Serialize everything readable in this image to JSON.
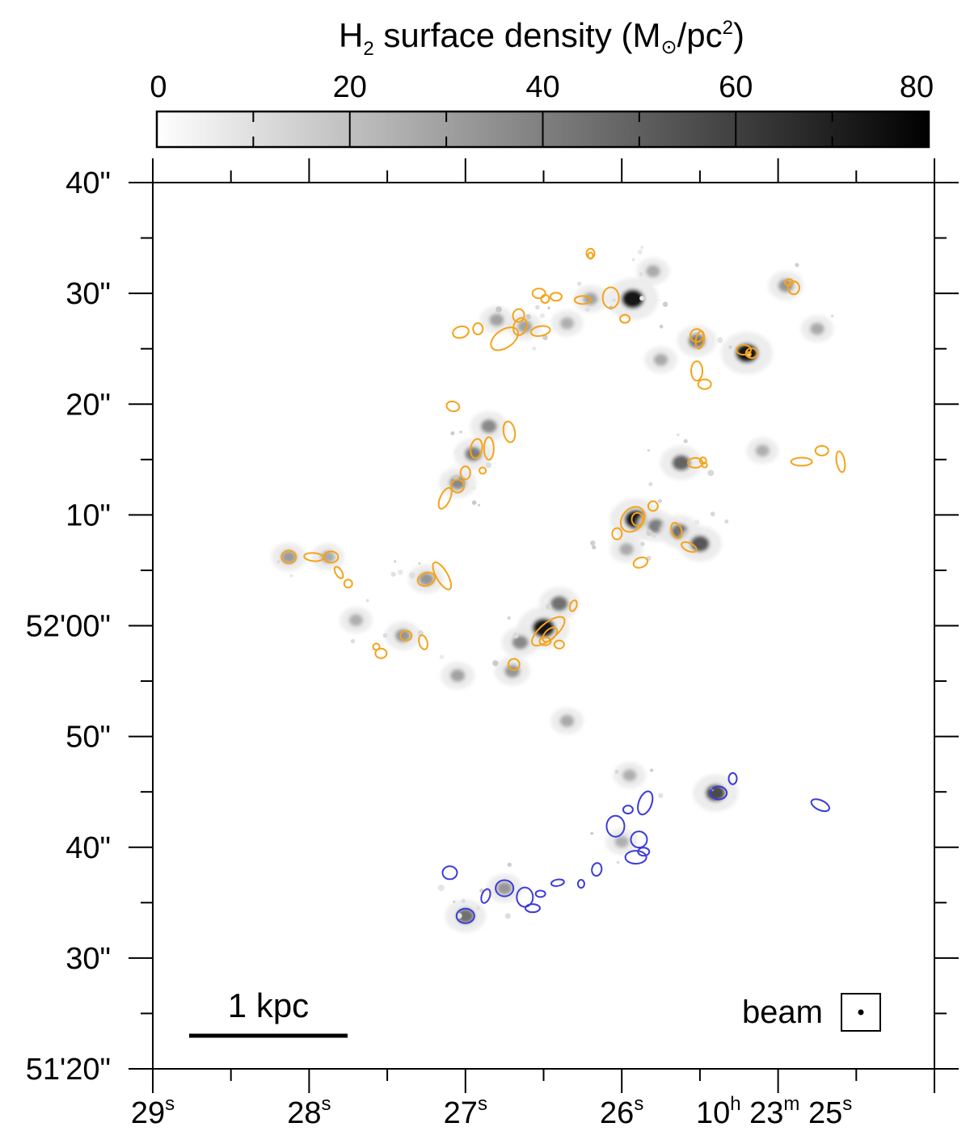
{
  "chart_data": {
    "type": "heatmap",
    "colorbar": {
      "title_main": "H",
      "title_sub": "2",
      "title_mid": " surface density (M",
      "title_sun": "⊙",
      "title_unit": "/pc",
      "title_sup": "2",
      "title_end": ")",
      "ticks": [
        "0",
        "20",
        "40",
        "60",
        "80"
      ],
      "range": [
        0,
        80
      ],
      "cmap": [
        "#ffffff",
        "#000000"
      ]
    },
    "y_axis": {
      "range_arcsec": [
        20,
        100
      ],
      "major_ticks": [
        {
          "v": 100,
          "label": "40\""
        },
        {
          "v": 90,
          "label": "30\""
        },
        {
          "v": 80,
          "label": "20\""
        },
        {
          "v": 70,
          "label": "10\""
        },
        {
          "v": 60,
          "label": "52'00\""
        },
        {
          "v": 50,
          "label": "50\""
        },
        {
          "v": 40,
          "label": "40\""
        },
        {
          "v": 30,
          "label": "30\""
        },
        {
          "v": 20,
          "label": "51'20\""
        }
      ]
    },
    "x_axis": {
      "range_s": [
        29,
        24
      ],
      "major_ticks": [
        {
          "v": 29,
          "base": "29",
          "sup": "s"
        },
        {
          "v": 28,
          "base": "28",
          "sup": "s"
        },
        {
          "v": 27,
          "base": "27",
          "sup": "s"
        },
        {
          "v": 26,
          "base": "26",
          "sup": "s"
        },
        {
          "v": 25,
          "parts": [
            "10",
            "h",
            " 23",
            "m",
            " 25",
            "s"
          ]
        }
      ]
    },
    "scale_bar": {
      "label": "1 kpc"
    },
    "beam": {
      "label": "beam"
    },
    "contour_colors": {
      "orange": "#f5a31a",
      "blue": "#3b3bdc"
    },
    "clumps": [
      {
        "ra": 28.13,
        "dec": 66.2,
        "peak": 28
      },
      {
        "ra": 27.88,
        "dec": 66.2,
        "peak": 22
      },
      {
        "ra": 27.4,
        "dec": 59.1,
        "peak": 30
      },
      {
        "ra": 27.25,
        "dec": 64.2,
        "peak": 30
      },
      {
        "ra": 27.05,
        "dec": 72.9,
        "peak": 35
      },
      {
        "ra": 26.95,
        "dec": 75.5,
        "peak": 40
      },
      {
        "ra": 26.85,
        "dec": 78.0,
        "peak": 35
      },
      {
        "ra": 26.8,
        "dec": 87.6,
        "peak": 25
      },
      {
        "ra": 26.62,
        "dec": 87.0,
        "peak": 25
      },
      {
        "ra": 26.35,
        "dec": 87.3,
        "peak": 20
      },
      {
        "ra": 26.2,
        "dec": 89.5,
        "peak": 25
      },
      {
        "ra": 25.93,
        "dec": 89.5,
        "peak": 80
      },
      {
        "ra": 25.75,
        "dec": 84.0,
        "peak": 22
      },
      {
        "ra": 25.8,
        "dec": 92.0,
        "peak": 22
      },
      {
        "ra": 25.91,
        "dec": 69.6,
        "peak": 80
      },
      {
        "ra": 25.78,
        "dec": 69.0,
        "peak": 40
      },
      {
        "ra": 25.63,
        "dec": 68.5,
        "peak": 45
      },
      {
        "ra": 25.5,
        "dec": 67.4,
        "peak": 55
      },
      {
        "ra": 25.62,
        "dec": 74.7,
        "peak": 50
      },
      {
        "ra": 25.97,
        "dec": 66.9,
        "peak": 22
      },
      {
        "ra": 26.5,
        "dec": 59.8,
        "peak": 80
      },
      {
        "ra": 26.4,
        "dec": 62.0,
        "peak": 45
      },
      {
        "ra": 26.65,
        "dec": 58.5,
        "peak": 35
      },
      {
        "ra": 26.7,
        "dec": 55.9,
        "peak": 30
      },
      {
        "ra": 27.05,
        "dec": 55.5,
        "peak": 25
      },
      {
        "ra": 26.35,
        "dec": 51.4,
        "peak": 22
      },
      {
        "ra": 25.52,
        "dec": 85.7,
        "peak": 40
      },
      {
        "ra": 25.2,
        "dec": 84.6,
        "peak": 80
      },
      {
        "ra": 24.95,
        "dec": 90.7,
        "peak": 30
      },
      {
        "ra": 24.75,
        "dec": 86.8,
        "peak": 22
      },
      {
        "ra": 25.1,
        "dec": 75.8,
        "peak": 20
      },
      {
        "ra": 25.4,
        "dec": 44.9,
        "peak": 60
      },
      {
        "ra": 27.0,
        "dec": 33.8,
        "peak": 45
      },
      {
        "ra": 26.75,
        "dec": 36.3,
        "peak": 30
      },
      {
        "ra": 26.0,
        "dec": 40.5,
        "peak": 20
      },
      {
        "ra": 25.95,
        "dec": 46.5,
        "peak": 20
      },
      {
        "ra": 27.7,
        "dec": 60.5,
        "peak": 20
      }
    ],
    "orange_contours": [
      {
        "ra": 28.13,
        "dec": 66.2,
        "rx": 9,
        "ry": 8,
        "rot": 0
      },
      {
        "ra": 27.97,
        "dec": 66.2,
        "rx": 12,
        "ry": 5,
        "rot": 5
      },
      {
        "ra": 27.86,
        "dec": 66.2,
        "rx": 9,
        "ry": 7,
        "rot": 0
      },
      {
        "ra": 27.81,
        "dec": 64.8,
        "rx": 4,
        "ry": 8,
        "rot": -30
      },
      {
        "ra": 27.75,
        "dec": 63.8,
        "rx": 5,
        "ry": 5,
        "rot": 0
      },
      {
        "ra": 27.57,
        "dec": 58.1,
        "rx": 4,
        "ry": 4,
        "rot": 0
      },
      {
        "ra": 27.54,
        "dec": 57.5,
        "rx": 7,
        "ry": 6,
        "rot": 0
      },
      {
        "ra": 27.38,
        "dec": 59.1,
        "rx": 7,
        "ry": 6,
        "rot": 0
      },
      {
        "ra": 27.27,
        "dec": 58.5,
        "rx": 5,
        "ry": 9,
        "rot": -15
      },
      {
        "ra": 27.25,
        "dec": 64.2,
        "rx": 11,
        "ry": 8,
        "rot": -20
      },
      {
        "ra": 27.15,
        "dec": 64.5,
        "rx": 7,
        "ry": 19,
        "rot": -30
      },
      {
        "ra": 27.13,
        "dec": 71.5,
        "rx": 6,
        "ry": 14,
        "rot": 25
      },
      {
        "ra": 27.08,
        "dec": 79.8,
        "rx": 8,
        "ry": 6,
        "rot": 15
      },
      {
        "ra": 27.05,
        "dec": 72.6,
        "rx": 8,
        "ry": 8,
        "rot": 0
      },
      {
        "ra": 27.0,
        "dec": 73.8,
        "rx": 6,
        "ry": 8,
        "rot": 0
      },
      {
        "ra": 26.89,
        "dec": 74.0,
        "rx": 4,
        "ry": 4,
        "rot": 0
      },
      {
        "ra": 26.93,
        "dec": 76.0,
        "rx": 7,
        "ry": 12,
        "rot": 10
      },
      {
        "ra": 26.85,
        "dec": 76.0,
        "rx": 6,
        "ry": 14,
        "rot": 0
      },
      {
        "ra": 26.72,
        "dec": 77.5,
        "rx": 7,
        "ry": 13,
        "rot": -10
      },
      {
        "ra": 27.03,
        "dec": 86.5,
        "rx": 10,
        "ry": 7,
        "rot": -15
      },
      {
        "ra": 26.92,
        "dec": 86.8,
        "rx": 6,
        "ry": 7,
        "rot": 0
      },
      {
        "ra": 26.75,
        "dec": 85.9,
        "rx": 19,
        "ry": 11,
        "rot": -35
      },
      {
        "ra": 26.65,
        "dec": 87.0,
        "rx": 8,
        "ry": 11,
        "rot": 20
      },
      {
        "ra": 26.66,
        "dec": 88.0,
        "rx": 7,
        "ry": 8,
        "rot": 10
      },
      {
        "ra": 26.53,
        "dec": 90.0,
        "rx": 8,
        "ry": 6,
        "rot": 0
      },
      {
        "ra": 26.52,
        "dec": 86.6,
        "rx": 12,
        "ry": 6,
        "rot": -10
      },
      {
        "ra": 26.49,
        "dec": 89.5,
        "rx": 5,
        "ry": 5,
        "rot": 0
      },
      {
        "ra": 26.42,
        "dec": 89.7,
        "rx": 7,
        "ry": 5,
        "rot": 0
      },
      {
        "ra": 26.25,
        "dec": 89.4,
        "rx": 10,
        "ry": 5,
        "rot": 0
      },
      {
        "ra": 26.2,
        "dec": 93.6,
        "rx": 5,
        "ry": 6,
        "rot": 0
      },
      {
        "ra": 26.2,
        "dec": 93.4,
        "rx": 3,
        "ry": 4,
        "rot": 0
      },
      {
        "ra": 26.07,
        "dec": 89.6,
        "rx": 10,
        "ry": 13,
        "rot": 0
      },
      {
        "ra": 25.98,
        "dec": 87.7,
        "rx": 6,
        "ry": 5,
        "rot": 0
      },
      {
        "ra": 26.31,
        "dec": 61.8,
        "rx": 4,
        "ry": 7,
        "rot": 20
      },
      {
        "ra": 26.47,
        "dec": 59.5,
        "rx": 10,
        "ry": 25,
        "rot": 50
      },
      {
        "ra": 26.46,
        "dec": 59.2,
        "rx": 6,
        "ry": 11,
        "rot": 45
      },
      {
        "ra": 26.49,
        "dec": 58.6,
        "rx": 7,
        "ry": 5,
        "rot": 0
      },
      {
        "ra": 26.4,
        "dec": 58.3,
        "rx": 6,
        "ry": 5,
        "rot": 0
      },
      {
        "ra": 26.69,
        "dec": 56.5,
        "rx": 7,
        "ry": 7,
        "rot": 0
      },
      {
        "ra": 25.93,
        "dec": 69.6,
        "rx": 13,
        "ry": 17,
        "rot": 40
      },
      {
        "ra": 25.9,
        "dec": 69.6,
        "rx": 7,
        "ry": 8,
        "rot": 0
      },
      {
        "ra": 26.03,
        "dec": 68.3,
        "rx": 6,
        "ry": 7,
        "rot": 0
      },
      {
        "ra": 25.8,
        "dec": 70.8,
        "rx": 6,
        "ry": 6,
        "rot": 0
      },
      {
        "ra": 25.88,
        "dec": 65.7,
        "rx": 9,
        "ry": 6,
        "rot": -20
      },
      {
        "ra": 25.65,
        "dec": 68.6,
        "rx": 6,
        "ry": 10,
        "rot": -20
      },
      {
        "ra": 25.57,
        "dec": 67.1,
        "rx": 10,
        "ry": 5,
        "rot": 25
      },
      {
        "ra": 25.53,
        "dec": 74.7,
        "rx": 9,
        "ry": 6,
        "rot": 0
      },
      {
        "ra": 25.48,
        "dec": 74.9,
        "rx": 4,
        "ry": 4,
        "rot": 0
      },
      {
        "ra": 25.47,
        "dec": 74.5,
        "rx": 3,
        "ry": 3,
        "rot": 0
      },
      {
        "ra": 24.85,
        "dec": 74.8,
        "rx": 13,
        "ry": 5,
        "rot": 0
      },
      {
        "ra": 24.72,
        "dec": 75.8,
        "rx": 8,
        "ry": 6,
        "rot": 0
      },
      {
        "ra": 24.6,
        "dec": 74.8,
        "rx": 5,
        "ry": 13,
        "rot": -10
      },
      {
        "ra": 25.52,
        "dec": 86.2,
        "rx": 8,
        "ry": 8,
        "rot": 0
      },
      {
        "ra": 25.5,
        "dec": 85.8,
        "rx": 5,
        "ry": 11,
        "rot": 10
      },
      {
        "ra": 25.52,
        "dec": 83.0,
        "rx": 7,
        "ry": 12,
        "rot": 0
      },
      {
        "ra": 25.47,
        "dec": 81.8,
        "rx": 8,
        "ry": 6,
        "rot": 0
      },
      {
        "ra": 25.22,
        "dec": 84.9,
        "rx": 9,
        "ry": 6,
        "rot": 0
      },
      {
        "ra": 25.17,
        "dec": 84.6,
        "rx": 7,
        "ry": 6,
        "rot": 0
      },
      {
        "ra": 25.19,
        "dec": 84.5,
        "rx": 3,
        "ry": 3,
        "rot": 0
      },
      {
        "ra": 24.93,
        "dec": 91.0,
        "rx": 5,
        "ry": 4,
        "rot": 0
      },
      {
        "ra": 24.9,
        "dec": 90.5,
        "rx": 7,
        "ry": 8,
        "rot": 0
      }
    ],
    "blue_contours": [
      {
        "ra": 27.1,
        "dec": 37.7,
        "rx": 9,
        "ry": 8,
        "rot": 0
      },
      {
        "ra": 27.0,
        "dec": 33.8,
        "rx": 11,
        "ry": 9,
        "rot": 0
      },
      {
        "ra": 26.87,
        "dec": 35.6,
        "rx": 5,
        "ry": 9,
        "rot": 20
      },
      {
        "ra": 26.75,
        "dec": 36.3,
        "rx": 11,
        "ry": 10,
        "rot": 0
      },
      {
        "ra": 26.62,
        "dec": 35.5,
        "rx": 10,
        "ry": 12,
        "rot": 0
      },
      {
        "ra": 26.57,
        "dec": 34.5,
        "rx": 9,
        "ry": 5,
        "rot": 0
      },
      {
        "ra": 26.52,
        "dec": 35.8,
        "rx": 6,
        "ry": 4,
        "rot": 0
      },
      {
        "ra": 26.41,
        "dec": 36.8,
        "rx": 8,
        "ry": 4,
        "rot": -10
      },
      {
        "ra": 26.26,
        "dec": 36.7,
        "rx": 4,
        "ry": 5,
        "rot": 0
      },
      {
        "ra": 26.16,
        "dec": 38.0,
        "rx": 6,
        "ry": 8,
        "rot": 10
      },
      {
        "ra": 26.04,
        "dec": 41.9,
        "rx": 11,
        "ry": 13,
        "rot": 0
      },
      {
        "ra": 25.96,
        "dec": 43.4,
        "rx": 6,
        "ry": 5,
        "rot": 0
      },
      {
        "ra": 25.85,
        "dec": 44.0,
        "rx": 8,
        "ry": 15,
        "rot": 20
      },
      {
        "ra": 25.89,
        "dec": 40.7,
        "rx": 10,
        "ry": 10,
        "rot": 0
      },
      {
        "ra": 25.86,
        "dec": 39.6,
        "rx": 7,
        "ry": 5,
        "rot": 0
      },
      {
        "ra": 25.91,
        "dec": 39.1,
        "rx": 13,
        "ry": 8,
        "rot": 0
      },
      {
        "ra": 25.38,
        "dec": 44.9,
        "rx": 10,
        "ry": 8,
        "rot": 0
      },
      {
        "ra": 25.29,
        "dec": 46.2,
        "rx": 5,
        "ry": 7,
        "rot": 0
      },
      {
        "ra": 24.73,
        "dec": 43.8,
        "rx": 12,
        "ry": 6,
        "rot": 25
      }
    ]
  }
}
